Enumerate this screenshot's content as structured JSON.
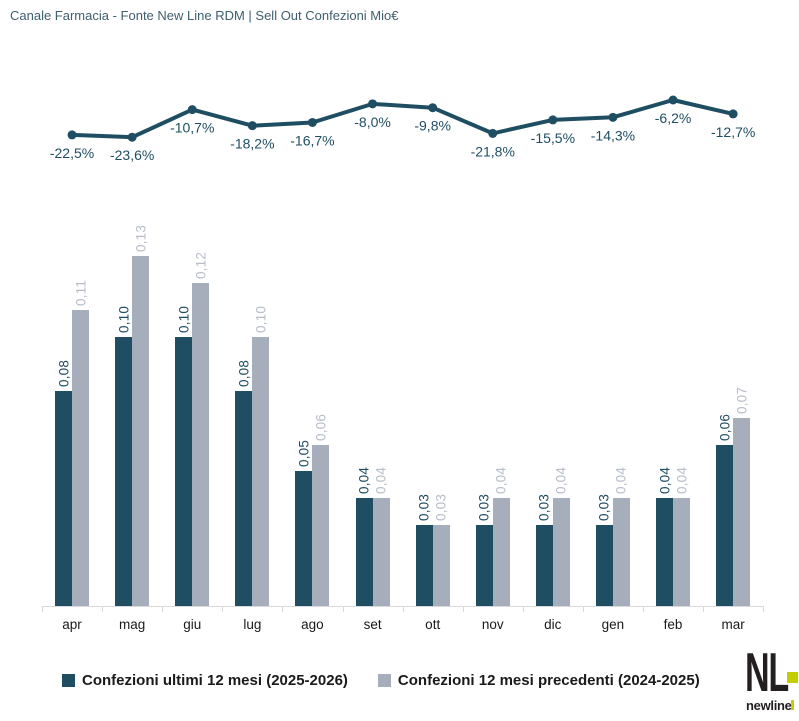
{
  "title": "Canale Farmacia - Fonte New Line RDM | Sell Out Confezioni Mio€",
  "colors": {
    "primary": "#1F4E62",
    "secondary": "#A6ADBB",
    "secondary_label": "#B7BEC9",
    "axis": "#D9D9D9",
    "text": "#1A1A1A",
    "title": "#3D5F6E",
    "logo_black": "#231F20",
    "logo_accent": "#C3CE00"
  },
  "chart_data": [
    {
      "type": "line",
      "title": "",
      "categories": [
        "apr",
        "mag",
        "giu",
        "lug",
        "ago",
        "set",
        "ott",
        "nov",
        "dic",
        "gen",
        "feb",
        "mar"
      ],
      "values": [
        -22.5,
        -23.6,
        -10.7,
        -18.2,
        -16.7,
        -8.0,
        -9.8,
        -21.8,
        -15.5,
        -14.3,
        -6.2,
        -12.7
      ],
      "labels": [
        "-22,5%",
        "-23,6%",
        "-10,7%",
        "-18,2%",
        "-16,7%",
        "-8,0%",
        "-9,8%",
        "-21,8%",
        "-15,5%",
        "-14,3%",
        "-6,2%",
        "-12,7%"
      ],
      "unit": "%",
      "grid": false,
      "axes_visible": false,
      "ylim": [
        -26,
        -4
      ]
    },
    {
      "type": "bar",
      "title": "",
      "categories": [
        "apr",
        "mag",
        "giu",
        "lug",
        "ago",
        "set",
        "ott",
        "nov",
        "dic",
        "gen",
        "feb",
        "mar"
      ],
      "series": [
        {
          "name": "Confezioni ultimi 12 mesi (2025-2026)",
          "color_key": "primary",
          "values": [
            0.08,
            0.1,
            0.1,
            0.08,
            0.05,
            0.04,
            0.03,
            0.03,
            0.03,
            0.03,
            0.04,
            0.06
          ],
          "labels": [
            "0,08",
            "0,10",
            "0,10",
            "0,08",
            "0,05",
            "0,04",
            "0,03",
            "0,03",
            "0,03",
            "0,03",
            "0,04",
            "0,06"
          ]
        },
        {
          "name": "Confezioni 12 mesi precedenti (2024-2025)",
          "color_key": "secondary",
          "values": [
            0.11,
            0.13,
            0.12,
            0.1,
            0.06,
            0.04,
            0.03,
            0.04,
            0.04,
            0.04,
            0.04,
            0.07
          ],
          "labels": [
            "0,11",
            "0,13",
            "0,12",
            "0,10",
            "0,06",
            "0,04",
            "0,03",
            "0,04",
            "0,04",
            "0,04",
            "0,04",
            "0,07"
          ]
        }
      ],
      "value_label_rotation": 90,
      "grid": false,
      "legend_position": "bottom",
      "ylim": [
        0,
        0.15
      ]
    }
  ],
  "legend": [
    {
      "label": "Confezioni ultimi 12 mesi (2025-2026)"
    },
    {
      "label": "Confezioni 12 mesi precedenti (2024-2025)"
    }
  ],
  "logo": {
    "monogram": "NL",
    "name": "newline"
  }
}
